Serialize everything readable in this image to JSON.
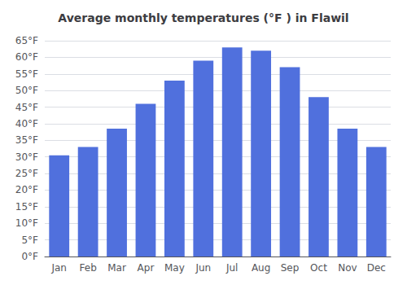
{
  "chart_data": {
    "type": "bar",
    "title": "Average monthly temperatures (°F ) in Flawil",
    "categories": [
      "Jan",
      "Feb",
      "Mar",
      "Apr",
      "May",
      "Jun",
      "Jul",
      "Aug",
      "Sep",
      "Oct",
      "Nov",
      "Dec"
    ],
    "values": [
      30.5,
      33,
      38.5,
      46,
      53,
      59,
      63,
      62,
      57,
      48,
      38.5,
      33
    ],
    "ylim": [
      0,
      65
    ],
    "yticks": [
      {
        "value": 0,
        "label": "0°F"
      },
      {
        "value": 5,
        "label": "5°F"
      },
      {
        "value": 10,
        "label": "10°F"
      },
      {
        "value": 15,
        "label": "15°F"
      },
      {
        "value": 20,
        "label": "20°F"
      },
      {
        "value": 25,
        "label": "25°F"
      },
      {
        "value": 30,
        "label": "30°F"
      },
      {
        "value": 35,
        "label": "35°F"
      },
      {
        "value": 40,
        "label": "40°F"
      },
      {
        "value": 45,
        "label": "45°F"
      },
      {
        "value": 50,
        "label": "50°F"
      },
      {
        "value": 55,
        "label": "55°F"
      },
      {
        "value": 60,
        "label": "60°F"
      },
      {
        "value": 65,
        "label": "65°F"
      }
    ],
    "grid": true
  }
}
